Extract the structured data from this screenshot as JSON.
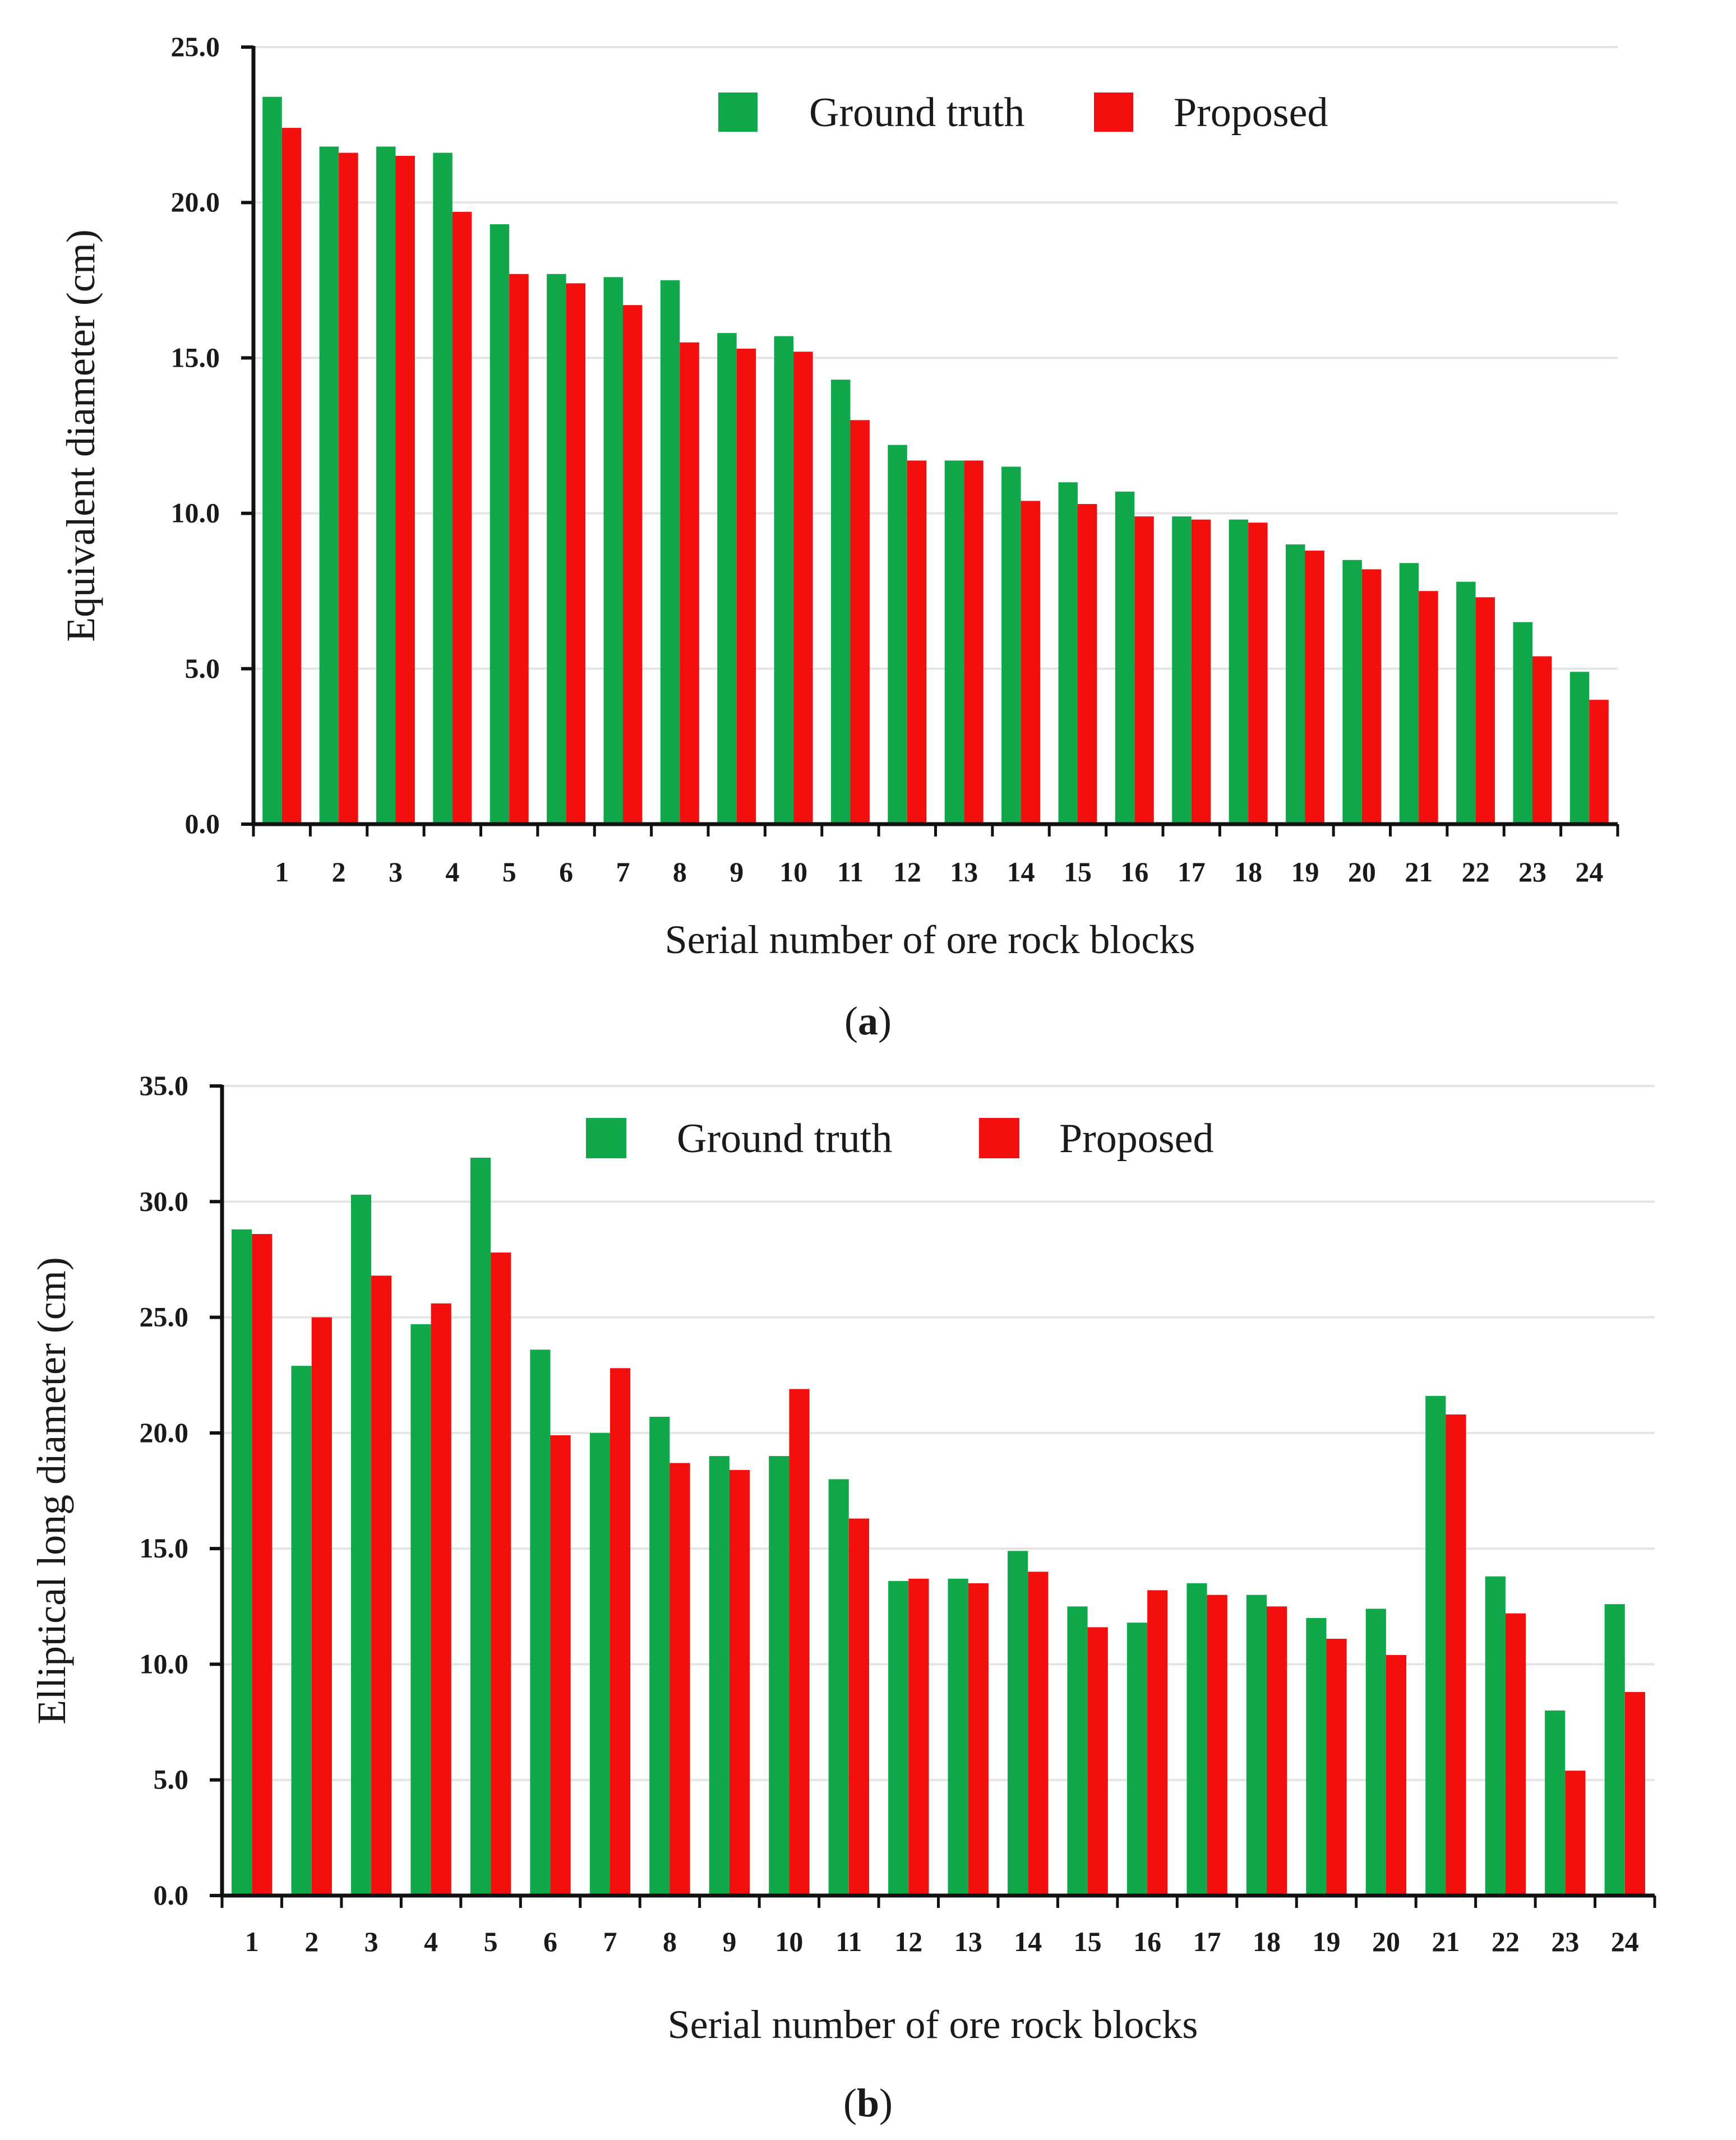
{
  "colors": {
    "ground_truth": "#10a84a",
    "proposed": "#f40f0f",
    "axis": "#111111",
    "grid": "#e4e4e4"
  },
  "chart_data": [
    {
      "type": "bar",
      "panel_label": "a",
      "categories": [
        "1",
        "2",
        "3",
        "4",
        "5",
        "6",
        "7",
        "8",
        "9",
        "10",
        "11",
        "12",
        "13",
        "14",
        "15",
        "16",
        "17",
        "18",
        "19",
        "20",
        "21",
        "22",
        "23",
        "24"
      ],
      "series": [
        {
          "name": "Ground truth",
          "values": [
            23.4,
            21.8,
            21.8,
            21.6,
            19.3,
            17.7,
            17.6,
            17.5,
            15.8,
            15.7,
            14.3,
            12.2,
            11.7,
            11.5,
            11.0,
            10.7,
            9.9,
            9.8,
            9.0,
            8.5,
            8.4,
            7.8,
            6.5,
            4.9
          ]
        },
        {
          "name": "Proposed",
          "values": [
            22.4,
            21.6,
            21.5,
            19.7,
            17.7,
            17.4,
            16.7,
            15.5,
            15.3,
            15.2,
            13.0,
            11.7,
            11.7,
            10.4,
            10.3,
            9.9,
            9.8,
            9.7,
            8.8,
            8.2,
            7.5,
            7.3,
            5.4,
            4.0
          ]
        }
      ],
      "xlabel": "Serial number of ore rock blocks",
      "ylabel": "Equivalent diameter (cm)",
      "ylim": [
        0,
        25
      ],
      "yticks": [
        "0.0",
        "5.0",
        "10.0",
        "15.0",
        "20.0",
        "25.0"
      ],
      "grid": true,
      "legend_position": "top"
    },
    {
      "type": "bar",
      "panel_label": "b",
      "categories": [
        "1",
        "2",
        "3",
        "4",
        "5",
        "6",
        "7",
        "8",
        "9",
        "10",
        "11",
        "12",
        "13",
        "14",
        "15",
        "16",
        "17",
        "18",
        "19",
        "20",
        "21",
        "22",
        "23",
        "24"
      ],
      "series": [
        {
          "name": "Ground truth",
          "values": [
            28.8,
            22.9,
            30.3,
            24.7,
            31.9,
            23.6,
            20.0,
            20.7,
            19.0,
            19.0,
            18.0,
            13.6,
            13.7,
            14.9,
            12.5,
            11.8,
            13.5,
            13.0,
            12.0,
            12.4,
            21.6,
            13.8,
            8.0,
            12.6
          ]
        },
        {
          "name": "Proposed",
          "values": [
            28.6,
            25.0,
            26.8,
            25.6,
            27.8,
            19.9,
            22.8,
            18.7,
            18.4,
            21.9,
            16.3,
            13.7,
            13.5,
            14.0,
            11.6,
            13.2,
            13.0,
            12.5,
            11.1,
            10.4,
            20.8,
            12.2,
            5.4,
            8.8
          ]
        }
      ],
      "xlabel": "Serial number of ore rock blocks",
      "ylabel": "Elliptical long diameter (cm)",
      "ylim": [
        0,
        35
      ],
      "yticks": [
        "0.0",
        "5.0",
        "10.0",
        "15.0",
        "20.0",
        "25.0",
        "30.0",
        "35.0"
      ],
      "grid": true,
      "legend_position": "top"
    }
  ]
}
